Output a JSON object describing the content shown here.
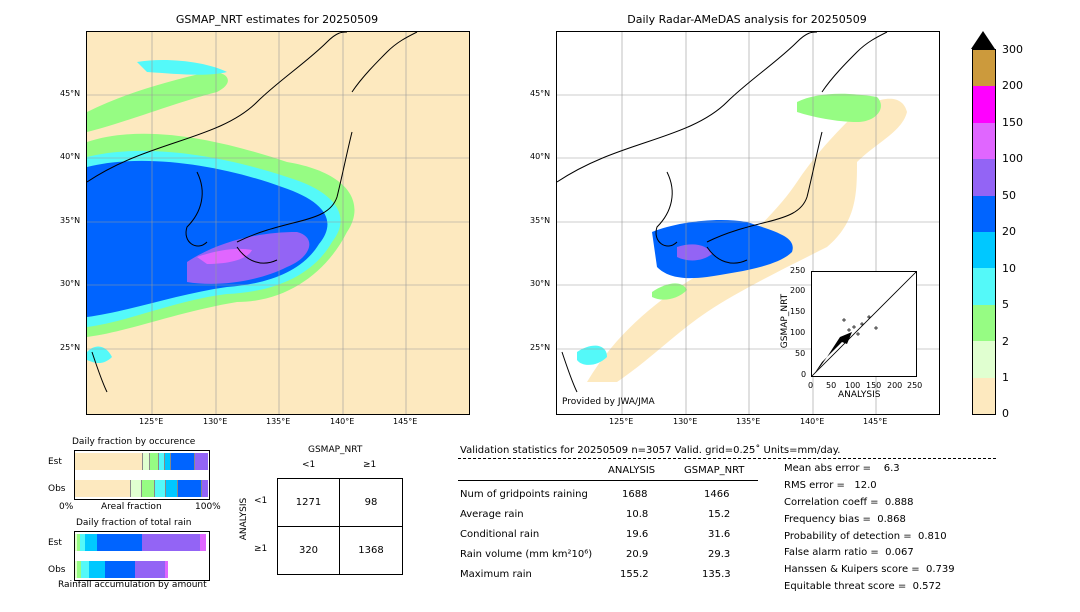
{
  "left_map": {
    "title": "GSMAP_NRT estimates for 20250509",
    "lat_labels": [
      "45°N",
      "40°N",
      "35°N",
      "30°N",
      "25°N"
    ],
    "lon_labels": [
      "125°E",
      "130°E",
      "135°E",
      "140°E",
      "145°E"
    ]
  },
  "right_map": {
    "title": "Daily Radar-AMeDAS analysis for 20250509",
    "lat_labels": [
      "45°N",
      "40°N",
      "35°N",
      "30°N",
      "25°N"
    ],
    "lon_labels": [
      "125°E",
      "130°E",
      "135°E",
      "140°E",
      "145°E"
    ],
    "credit": "Provided by JWA/JMA"
  },
  "colorbar": {
    "levels": [
      "0",
      "1",
      "2",
      "5",
      "10",
      "20",
      "50",
      "100",
      "150",
      "200",
      "300"
    ],
    "colors": [
      "#fde9bf",
      "#e0ffd0",
      "#96fc83",
      "#54f9f9",
      "#00c8ff",
      "#0064ff",
      "#9364f5",
      "#e066ff",
      "#ff00ff",
      "#cc9a3c",
      "#000000"
    ]
  },
  "scatter": {
    "xlabel": "ANALYSIS",
    "ylabel": "GSMAP_NRT",
    "ticks": [
      "0",
      "50",
      "100",
      "150",
      "200",
      "250"
    ]
  },
  "occurrence": {
    "title": "Daily fraction by occurence",
    "row_labels": [
      "Est",
      "Obs"
    ],
    "axis_left": "0%",
    "axis_mid": "Areal fraction",
    "axis_right": "100%"
  },
  "total_rain": {
    "title": "Daily fraction of total rain",
    "row_labels": [
      "Est",
      "Obs"
    ],
    "footer": "Rainfall accumulation by amount"
  },
  "contingency": {
    "title": "GSMAP_NRT",
    "col_labels": [
      "<1",
      "≥1"
    ],
    "row_axis": "ANALYSIS",
    "row_labels": [
      "<1",
      "≥1"
    ],
    "cells": [
      [
        "1271",
        "98"
      ],
      [
        "320",
        "1368"
      ]
    ]
  },
  "validation": {
    "header": "Validation statistics for 20250509  n=3057 Valid. grid=0.25˚ Units=mm/day.",
    "col_analysis": "ANALYSIS",
    "col_gsmap": "GSMAP_NRT",
    "rows": [
      {
        "label": "Num of gridpoints raining",
        "analysis": "1688",
        "gsmap": "1466"
      },
      {
        "label": "Average rain",
        "analysis": "10.8",
        "gsmap": "15.2"
      },
      {
        "label": "Conditional rain",
        "analysis": "19.6",
        "gsmap": "31.6"
      },
      {
        "label": "Rain volume (mm km²10⁶)",
        "analysis": "20.9",
        "gsmap": "29.3"
      },
      {
        "label": "Maximum rain",
        "analysis": "155.2",
        "gsmap": "135.3"
      }
    ],
    "scores": [
      "Mean abs error =    6.3",
      "RMS error =   12.0",
      "Correlation coeff =  0.888",
      "Frequency bias =  0.868",
      "Probability of detection =  0.810",
      "False alarm ratio =  0.067",
      "Hanssen & Kuipers score =  0.739",
      "Equitable threat score =  0.572"
    ]
  }
}
